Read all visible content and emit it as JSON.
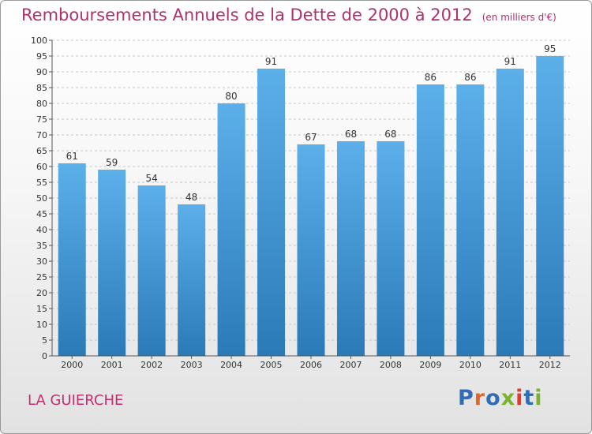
{
  "title": "Remboursements Annuels de la Dette de 2000 à 2012",
  "subtitle": "(en milliers d'€)",
  "commune": "LA GUIERCHE",
  "logo": {
    "text": "Proxiti",
    "letter_colors": [
      "#2f6db5",
      "#e0672b",
      "#2f6db5",
      "#7ab32e",
      "#e33a2c",
      "#2f6db5",
      "#7ab32e"
    ]
  },
  "colors": {
    "bar_top": "#5cb0ea",
    "bar_bottom": "#2a7ab8",
    "title": "#b0306e",
    "grid": "#c8c8c8"
  },
  "chart_data": {
    "type": "bar",
    "categories": [
      "2000",
      "2001",
      "2002",
      "2003",
      "2004",
      "2005",
      "2006",
      "2007",
      "2008",
      "2009",
      "2010",
      "2011",
      "2012"
    ],
    "values": [
      61,
      59,
      54,
      48,
      80,
      91,
      67,
      68,
      68,
      86,
      86,
      91,
      95
    ],
    "title": "Remboursements Annuels de la Dette de 2000 à 2012",
    "subtitle": "(en milliers d'€)",
    "ylim": [
      0,
      100
    ],
    "ytick_step": 5,
    "grid": true,
    "data_labels": true
  }
}
